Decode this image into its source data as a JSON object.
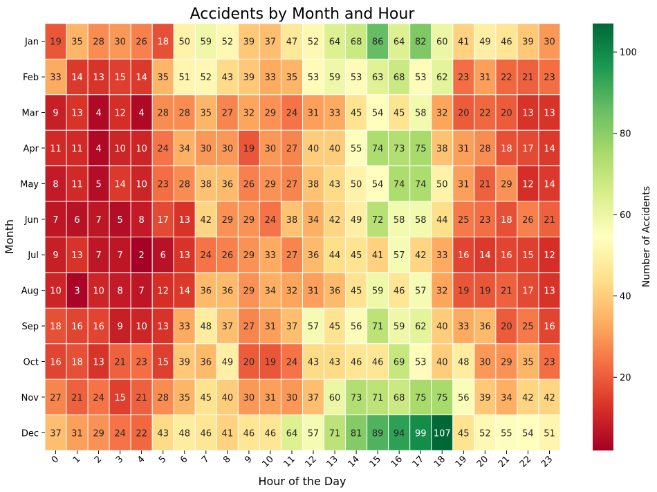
{
  "chart_data": {
    "type": "heatmap",
    "title": "Accidents by Month and Hour",
    "xlabel": "Hour of the Day",
    "ylabel": "Month",
    "colorbar_label": "Number of Accidents",
    "colorbar_ticks": [
      20,
      40,
      60,
      80,
      100
    ],
    "vmin": 2,
    "vmax": 107,
    "colormap": "RdYlGn",
    "x": [
      "0",
      "1",
      "2",
      "3",
      "4",
      "5",
      "6",
      "7",
      "8",
      "9",
      "10",
      "11",
      "12",
      "13",
      "14",
      "15",
      "16",
      "17",
      "18",
      "19",
      "20",
      "21",
      "22",
      "23"
    ],
    "y": [
      "Jan",
      "Feb",
      "Mar",
      "Apr",
      "May",
      "Jun",
      "Jul",
      "Aug",
      "Sep",
      "Oct",
      "Nov",
      "Dec"
    ],
    "values": [
      [
        19,
        35,
        28,
        30,
        26,
        18,
        50,
        59,
        52,
        39,
        37,
        47,
        52,
        64,
        68,
        86,
        64,
        82,
        60,
        41,
        49,
        46,
        39,
        30
      ],
      [
        33,
        14,
        13,
        15,
        14,
        35,
        51,
        52,
        43,
        39,
        33,
        35,
        53,
        59,
        53,
        63,
        68,
        53,
        62,
        23,
        31,
        22,
        21,
        23
      ],
      [
        9,
        13,
        4,
        12,
        4,
        28,
        28,
        35,
        27,
        32,
        29,
        24,
        31,
        33,
        45,
        54,
        45,
        58,
        32,
        20,
        22,
        20,
        13,
        13
      ],
      [
        11,
        11,
        4,
        10,
        10,
        24,
        34,
        30,
        30,
        19,
        30,
        27,
        40,
        40,
        55,
        74,
        73,
        75,
        38,
        31,
        28,
        18,
        17,
        14
      ],
      [
        8,
        11,
        5,
        14,
        10,
        23,
        28,
        38,
        36,
        26,
        29,
        27,
        38,
        43,
        50,
        54,
        74,
        74,
        50,
        31,
        21,
        29,
        12,
        14
      ],
      [
        7,
        6,
        7,
        5,
        8,
        17,
        13,
        42,
        29,
        29,
        24,
        38,
        34,
        42,
        49,
        72,
        58,
        58,
        44,
        25,
        23,
        18,
        26,
        21
      ],
      [
        9,
        13,
        7,
        7,
        2,
        6,
        13,
        24,
        26,
        29,
        33,
        27,
        36,
        44,
        45,
        41,
        57,
        42,
        33,
        16,
        14,
        16,
        15,
        12
      ],
      [
        10,
        3,
        10,
        8,
        7,
        12,
        14,
        36,
        36,
        29,
        34,
        32,
        31,
        36,
        45,
        59,
        46,
        57,
        32,
        19,
        19,
        21,
        17,
        13
      ],
      [
        18,
        16,
        16,
        9,
        10,
        13,
        33,
        48,
        37,
        27,
        31,
        37,
        57,
        45,
        56,
        71,
        59,
        62,
        40,
        33,
        36,
        20,
        25,
        16
      ],
      [
        16,
        18,
        13,
        21,
        23,
        15,
        39,
        36,
        49,
        20,
        19,
        24,
        43,
        43,
        46,
        46,
        69,
        53,
        40,
        48,
        30,
        29,
        35,
        23
      ],
      [
        27,
        21,
        24,
        15,
        21,
        28,
        35,
        45,
        40,
        30,
        31,
        30,
        37,
        60,
        73,
        71,
        68,
        75,
        75,
        56,
        39,
        34,
        42,
        42
      ],
      [
        37,
        31,
        29,
        24,
        22,
        43,
        48,
        46,
        41,
        46,
        46,
        64,
        57,
        71,
        81,
        89,
        94,
        99,
        107,
        45,
        52,
        55,
        54,
        51
      ]
    ],
    "grid": false,
    "legend": "colorbar-right"
  }
}
